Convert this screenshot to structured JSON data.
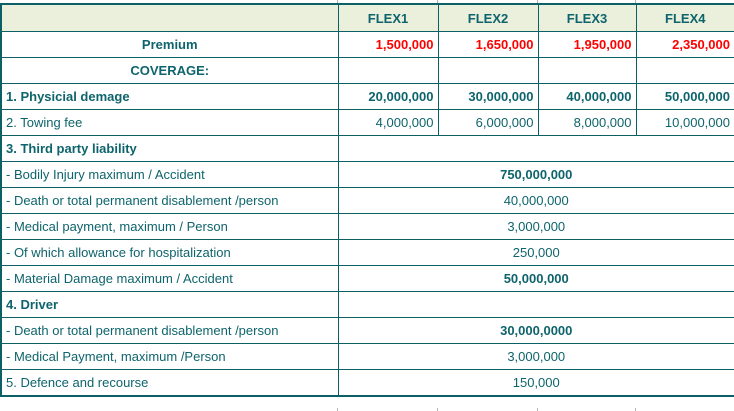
{
  "colors": {
    "text_teal": "#0e646c",
    "border_teal": "#0b6066",
    "header_background": "#eaf0dc",
    "premium_red": "#ff0000",
    "gridline_gray": "#b4b4b4"
  },
  "table": {
    "corner_label": "",
    "columns": [
      "FLEX1",
      "FLEX2",
      "FLEX3",
      "FLEX4"
    ],
    "rows": [
      {
        "label": "Premium",
        "label_bold": true,
        "label_align": "center",
        "type": "cells",
        "values": [
          "1,500,000",
          "1,650,000",
          "1,950,000",
          "2,350,000"
        ],
        "values_bold": true,
        "values_color": "red"
      },
      {
        "label": "COVERAGE:",
        "label_bold": true,
        "label_align": "center",
        "type": "cells",
        "values": [
          "",
          "",
          "",
          ""
        ]
      },
      {
        "label": "1. Physicial demage",
        "label_bold": true,
        "label_align": "left",
        "type": "cells",
        "values": [
          "20,000,000",
          "30,000,000",
          "40,000,000",
          "50,000,000"
        ],
        "values_bold": true
      },
      {
        "label": "2. Towing fee",
        "label_bold": false,
        "label_align": "left",
        "type": "cells",
        "values": [
          "4,000,000",
          "6,000,000",
          "8,000,000",
          "10,000,000"
        ]
      },
      {
        "label": "3. Third party liability",
        "label_bold": true,
        "label_align": "left",
        "type": "merged",
        "value": ""
      },
      {
        "label": "- Bodily Injury maximum / Accident",
        "label_bold": false,
        "label_align": "left",
        "type": "merged",
        "value": "750,000,000",
        "value_bold": true
      },
      {
        "label": "- Death or total permanent disablement /person",
        "label_bold": false,
        "label_align": "left",
        "type": "merged",
        "value": "40,000,000"
      },
      {
        "label": "- Medical payment, maximum / Person",
        "label_bold": false,
        "label_align": "left",
        "type": "merged",
        "value": "3,000,000"
      },
      {
        "label": "- Of which allowance for hospitalization",
        "label_bold": false,
        "label_align": "left",
        "type": "merged",
        "value": "250,000"
      },
      {
        "label": "- Material Damage maximum / Accident",
        "label_bold": false,
        "label_align": "left",
        "type": "merged",
        "value": "50,000,000",
        "value_bold": true
      },
      {
        "label": "4. Driver",
        "label_bold": true,
        "label_align": "left",
        "type": "merged",
        "value": ""
      },
      {
        "label": "- Death or total permanent disablement /person",
        "label_bold": false,
        "label_align": "left",
        "type": "merged",
        "value": "30,000,0000",
        "value_bold": true
      },
      {
        "label": "- Medical Payment, maximum /Person",
        "label_bold": false,
        "label_align": "left",
        "type": "merged",
        "value": "3,000,000"
      },
      {
        "label": "5. Defence and recourse",
        "label_bold": false,
        "label_align": "left",
        "type": "merged",
        "value": "150,000"
      }
    ]
  },
  "layout_artifacts": {
    "gridline_stub_positions": [
      337,
      437,
      537,
      635
    ]
  }
}
